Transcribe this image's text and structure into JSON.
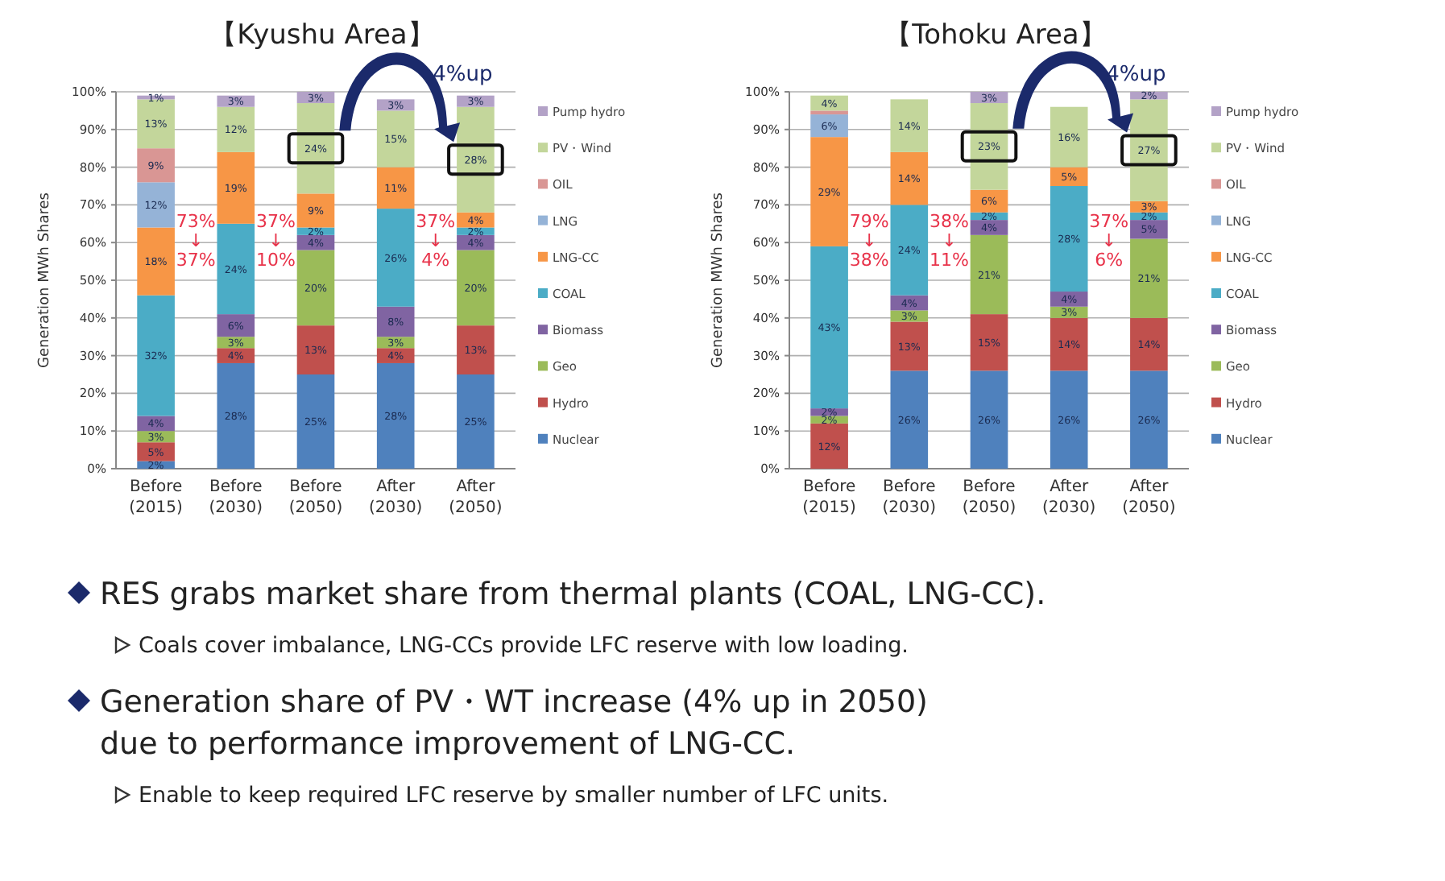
{
  "chart_data": [
    {
      "type": "bar",
      "stacked": true,
      "title": "【Kyushu Area】",
      "ylabel": "Generation MWh Shares",
      "legend": "right",
      "grid": "y",
      "categories": [
        "Before (2015)",
        "Before (2030)",
        "Before (2050)",
        "After (2030)",
        "After (2050)"
      ],
      "ylim": [
        0,
        100
      ],
      "yticks": [
        {
          "value": 0,
          "label": "0%"
        },
        {
          "value": 10,
          "label": "10%"
        },
        {
          "value": 20,
          "label": "20%"
        },
        {
          "value": 30,
          "label": "30%"
        },
        {
          "value": 40,
          "label": "40%"
        },
        {
          "value": 50,
          "label": "50%"
        },
        {
          "value": 60,
          "label": "60%"
        },
        {
          "value": 70,
          "label": "70%"
        },
        {
          "value": 80,
          "label": "80%"
        },
        {
          "value": 90,
          "label": "90%"
        },
        {
          "value": 100,
          "label": "100%"
        }
      ],
      "series": [
        {
          "name": "Nuclear",
          "color": "#4f81bd",
          "values": [
            2,
            28,
            25,
            28,
            25
          ],
          "value_labels": [
            "2%",
            "28%",
            "25%",
            "28%",
            "25%"
          ]
        },
        {
          "name": "Hydro",
          "color": "#c0504d",
          "values": [
            5,
            4,
            13,
            4,
            13
          ],
          "value_labels": [
            "5%",
            "4%",
            "13%",
            "4%",
            "13%"
          ]
        },
        {
          "name": "Geo",
          "color": "#9bbb59",
          "values": [
            3,
            3,
            20,
            3,
            20
          ],
          "value_labels": [
            "3%",
            "3%",
            "20%",
            "3%",
            "20%"
          ]
        },
        {
          "name": "Biomass",
          "color": "#8064a2",
          "values": [
            4,
            6,
            4,
            8,
            4
          ],
          "value_labels": [
            "4%",
            "6%",
            "4%",
            "8%",
            "4%"
          ]
        },
        {
          "name": "COAL",
          "color": "#4bacc6",
          "values": [
            32,
            24,
            2,
            26,
            2
          ],
          "value_labels": [
            "32%",
            "24%",
            "2%",
            "26%",
            "2%"
          ]
        },
        {
          "name": "LNG-CC",
          "color": "#f79646",
          "values": [
            18,
            19,
            9,
            11,
            4
          ],
          "value_labels": [
            "18%",
            "19%",
            "9%",
            "11%",
            "4%"
          ]
        },
        {
          "name": "LNG",
          "color": "#95b3d7",
          "values": [
            12,
            null,
            null,
            null,
            null
          ],
          "value_labels": [
            "12%",
            null,
            null,
            null,
            null
          ]
        },
        {
          "name": "OIL",
          "color": "#d99694",
          "values": [
            9,
            null,
            null,
            null,
            null
          ],
          "value_labels": [
            "9%",
            null,
            null,
            null,
            null
          ]
        },
        {
          "name": "PV・Wind",
          "color": "#c3d69b",
          "values": [
            13,
            12,
            24,
            15,
            28
          ],
          "value_labels": [
            "13%",
            "12%",
            "24%",
            "15%",
            "28%"
          ]
        },
        {
          "name": "Pump hydro",
          "color": "#b3a2c7",
          "values": [
            1,
            3,
            3,
            3,
            3
          ],
          "value_labels": [
            "1%",
            "3%",
            "3%",
            "3%",
            "3%"
          ]
        }
      ],
      "annotations": [
        "73%\n↓\n37%",
        "37%\n↓\n10%",
        "37%\n↓\n4%",
        "4%up"
      ]
    },
    {
      "type": "bar",
      "stacked": true,
      "title": "【Tohoku Area】",
      "ylabel": "Generation MWh Shares",
      "legend": "right",
      "grid": "y",
      "categories": [
        "Before (2015)",
        "Before (2030)",
        "Before (2050)",
        "After (2030)",
        "After (2050)"
      ],
      "ylim": [
        0,
        100
      ],
      "yticks": [
        {
          "value": 0,
          "label": "0%"
        },
        {
          "value": 10,
          "label": "10%"
        },
        {
          "value": 20,
          "label": "20%"
        },
        {
          "value": 30,
          "label": "30%"
        },
        {
          "value": 40,
          "label": "40%"
        },
        {
          "value": 50,
          "label": "50%"
        },
        {
          "value": 60,
          "label": "60%"
        },
        {
          "value": 70,
          "label": "70%"
        },
        {
          "value": 80,
          "label": "80%"
        },
        {
          "value": 90,
          "label": "90%"
        },
        {
          "value": 100,
          "label": "100%"
        }
      ],
      "series": [
        {
          "name": "Nuclear",
          "color": "#4f81bd",
          "values": [
            null,
            26,
            26,
            26,
            26
          ],
          "value_labels": [
            null,
            "26%",
            "26%",
            "26%",
            "26%"
          ]
        },
        {
          "name": "Hydro",
          "color": "#c0504d",
          "values": [
            12,
            13,
            15,
            14,
            14
          ],
          "value_labels": [
            "12%",
            "13%",
            "15%",
            "14%",
            "14%"
          ]
        },
        {
          "name": "Geo",
          "color": "#9bbb59",
          "values": [
            2,
            3,
            21,
            3,
            21
          ],
          "value_labels": [
            "2%",
            "3%",
            "21%",
            "3%",
            "21%"
          ]
        },
        {
          "name": "Biomass",
          "color": "#8064a2",
          "values": [
            2,
            4,
            4,
            4,
            5
          ],
          "value_labels": [
            "2%",
            "4%",
            "4%",
            "4%",
            "5%"
          ]
        },
        {
          "name": "COAL",
          "color": "#4bacc6",
          "values": [
            43,
            24,
            2,
            28,
            2
          ],
          "value_labels": [
            "43%",
            "24%",
            "2%",
            "28%",
            "2%"
          ]
        },
        {
          "name": "LNG-CC",
          "color": "#f79646",
          "values": [
            29,
            14,
            6,
            5,
            3
          ],
          "value_labels": [
            "29%",
            "14%",
            "6%",
            "5%",
            "3%"
          ]
        },
        {
          "name": "LNG",
          "color": "#95b3d7",
          "values": [
            6,
            null,
            null,
            null,
            null
          ],
          "value_labels": [
            "6%",
            null,
            null,
            null,
            null
          ]
        },
        {
          "name": "OIL",
          "color": "#d99694",
          "values": [
            1,
            null,
            null,
            null,
            null
          ],
          "value_labels": [
            null,
            null,
            null,
            null,
            null
          ]
        },
        {
          "name": "PV・Wind",
          "color": "#c3d69b",
          "values": [
            4,
            14,
            23,
            16,
            27
          ],
          "value_labels": [
            "4%",
            "14%",
            "23%",
            "16%",
            "27%"
          ]
        },
        {
          "name": "Pump hydro",
          "color": "#b3a2c7",
          "values": [
            null,
            null,
            3,
            null,
            2
          ],
          "value_labels": [
            null,
            null,
            "3%",
            null,
            "2%"
          ]
        }
      ],
      "annotations": [
        "79%\n↓\n38%",
        "38%\n↓\n11%",
        "37%\n↓\n6%",
        "4%up"
      ]
    },
    {
      "type": "other",
      "annotations": [
        "RES grabs market share from thermal plants (COAL, LNG-CC).",
        "Coals cover imbalance, LNG-CCs provide LFC reserve with low loading.",
        "Generation share of PV・WT increase (4% up in 2050)\ndue to performance improvement of LNG-CC.",
        "Enable to keep required LFC reserve by smaller number of LFC units."
      ]
    }
  ]
}
